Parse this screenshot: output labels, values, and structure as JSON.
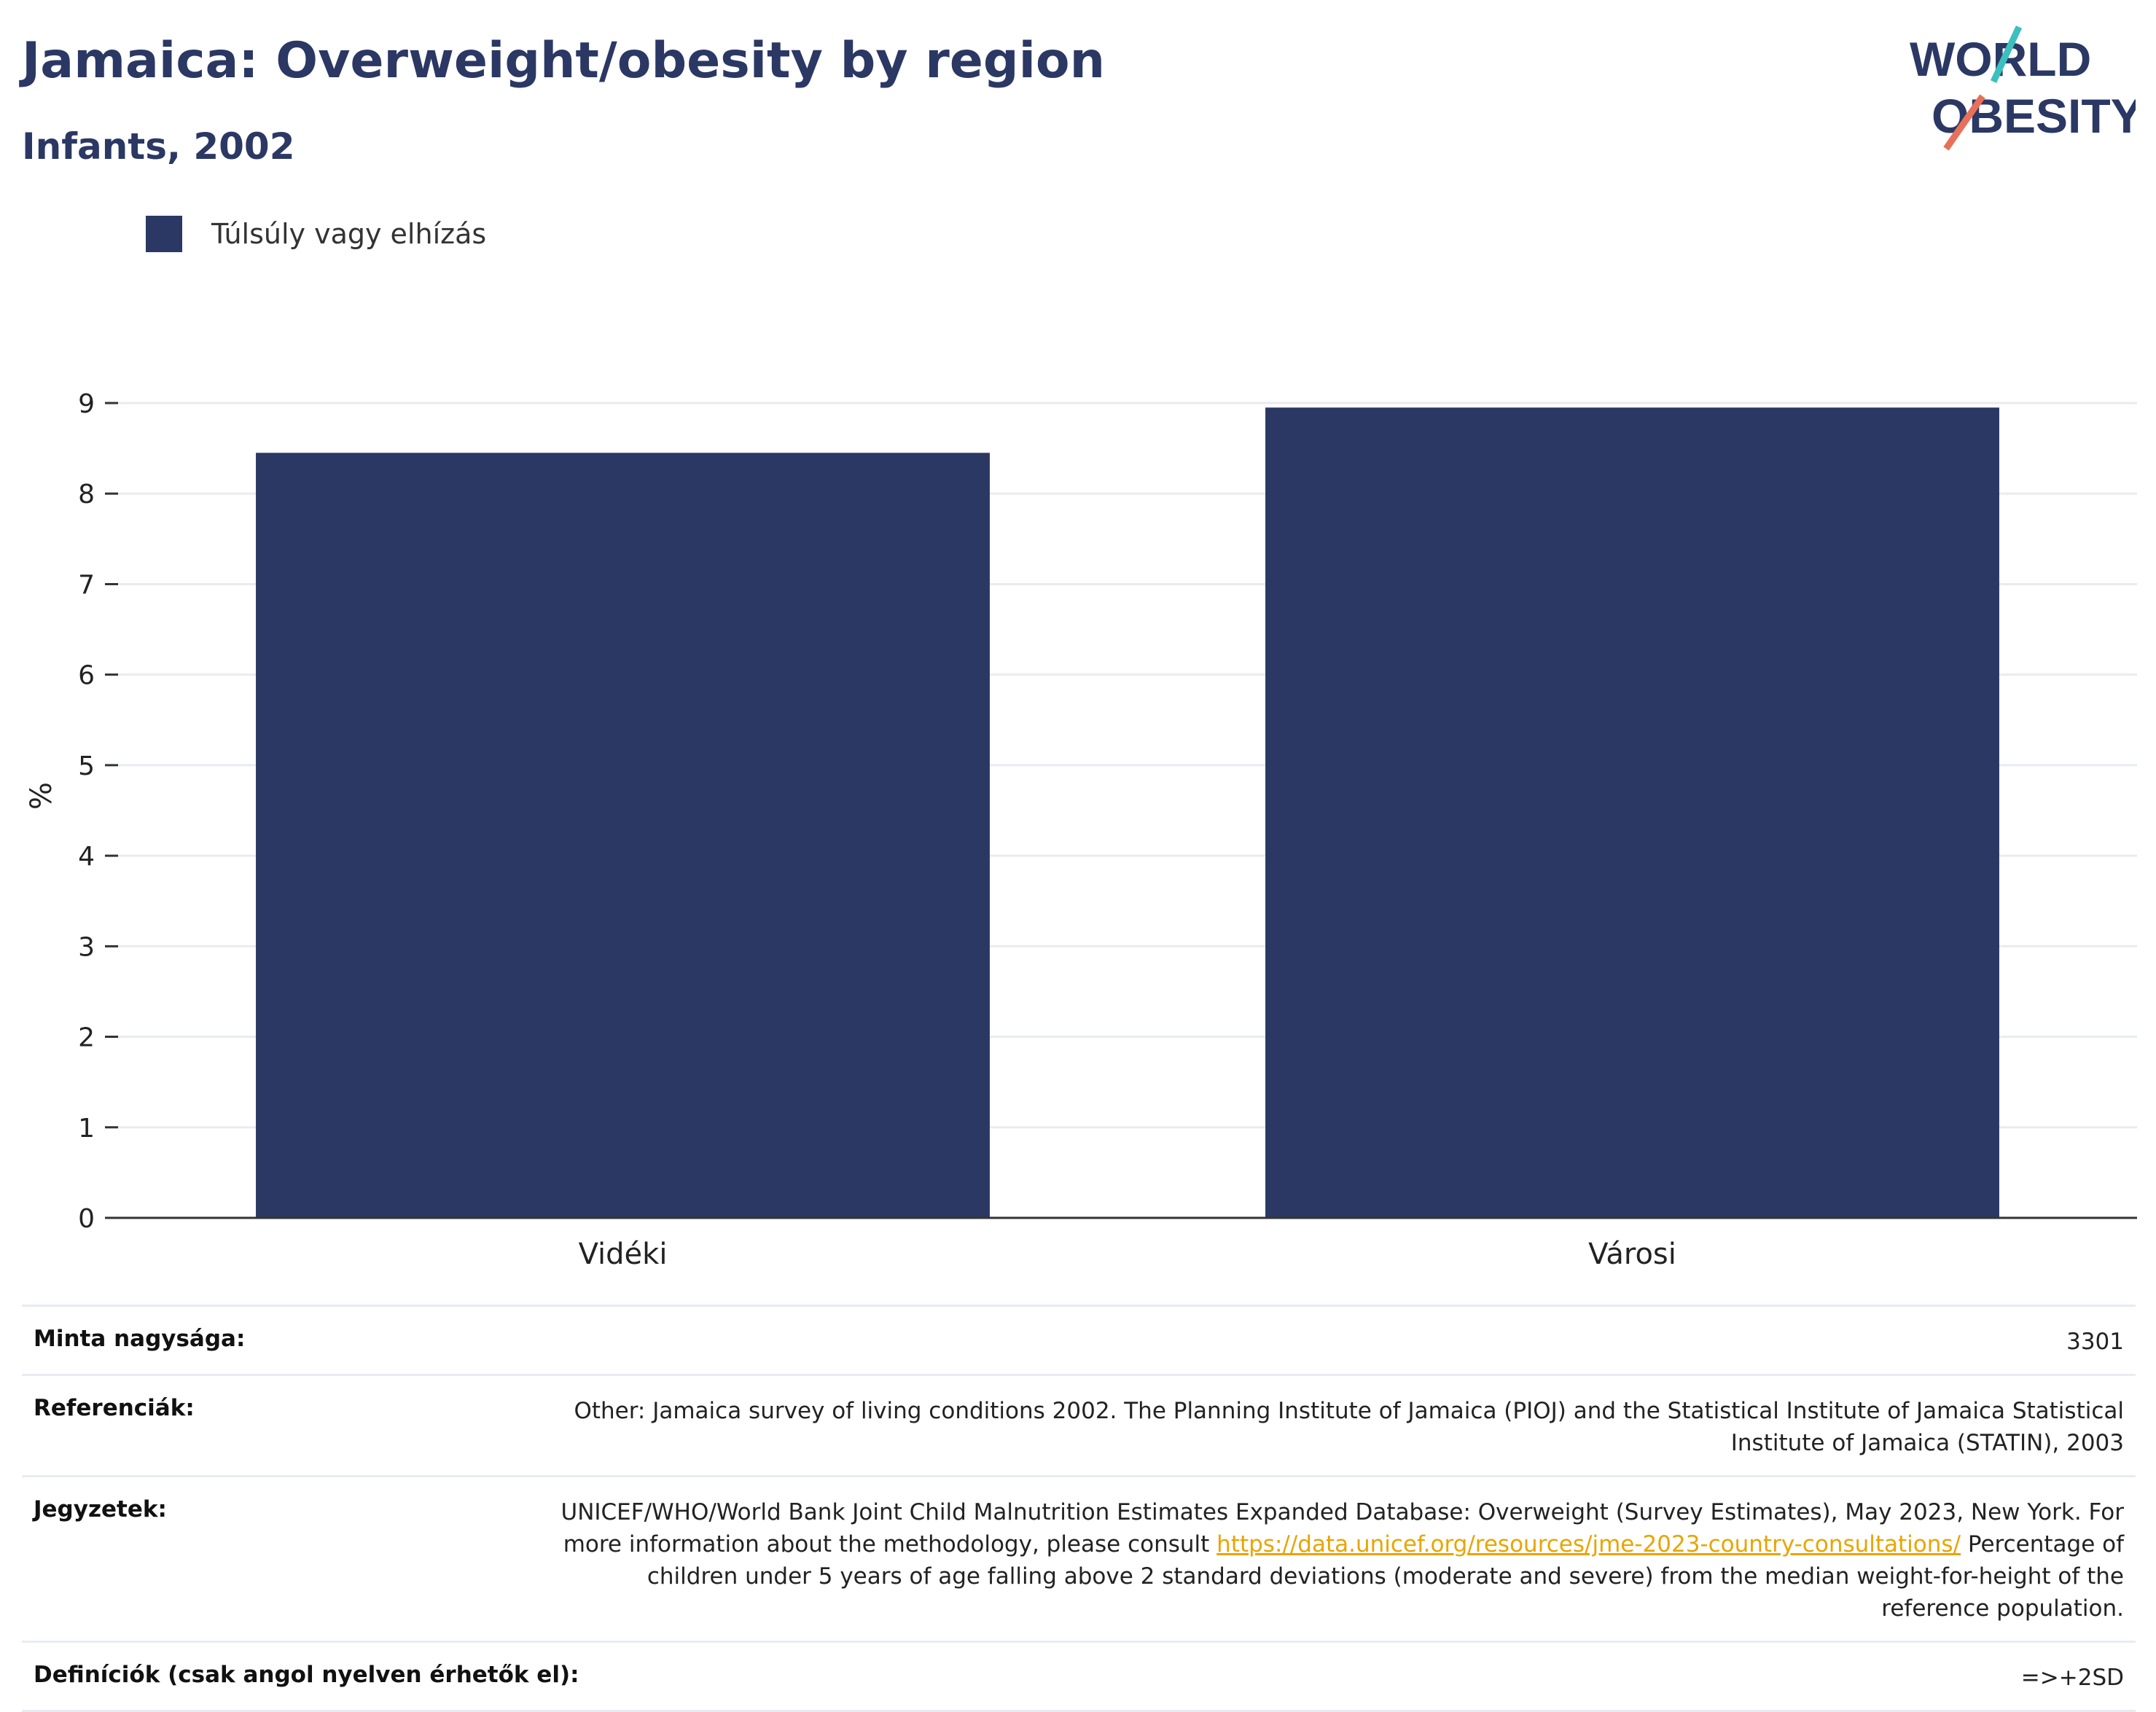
{
  "header": {
    "title": "Jamaica: Overweight/obesity by region",
    "subtitle": "Infants, 2002"
  },
  "logo": {
    "line1": "WORLD",
    "line2": "OBESITY",
    "accent_teal": "#3cbfbf",
    "accent_coral": "#e8705a"
  },
  "colors": {
    "bar": "#2b3864",
    "grid": "#e9ebf0",
    "axis": "#333333"
  },
  "chart_data": {
    "type": "bar",
    "categories": [
      "Vidéki",
      "Városi"
    ],
    "series": [
      {
        "name": "Túlsúly vagy elhízás",
        "values": [
          8.45,
          8.95
        ]
      }
    ],
    "ylabel": "%",
    "ylim": [
      0,
      9
    ],
    "yticks": [
      0,
      1,
      2,
      3,
      4,
      5,
      6,
      7,
      8,
      9
    ],
    "grid": true,
    "legend_position": "top-left"
  },
  "table": {
    "sample": {
      "label": "Minta nagysága:",
      "value": "3301"
    },
    "references": {
      "label": "Referenciák:",
      "value": "Other: Jamaica survey of living conditions 2002. The Planning Institute of Jamaica (PIOJ) and the Statistical Institute of Jamaica Statistical Institute of Jamaica (STATIN), 2003"
    },
    "notes": {
      "label": "Jegyzetek:",
      "text1": "UNICEF/WHO/World Bank Joint Child Malnutrition Estimates Expanded Database: Overweight (Survey Estimates), May 2023, New York. For more information about the methodology, please consult",
      "link": "https://data.unicef.org/resources/jme-2023-country-consultations/",
      "text2": "Percentage of children under 5 years of age falling above 2 standard deviations (moderate and severe) from the median weight-for-height of the reference population."
    },
    "definitions": {
      "label": "Definíciók (csak angol nyelven érhetők el):",
      "value": "=>+2SD"
    }
  }
}
